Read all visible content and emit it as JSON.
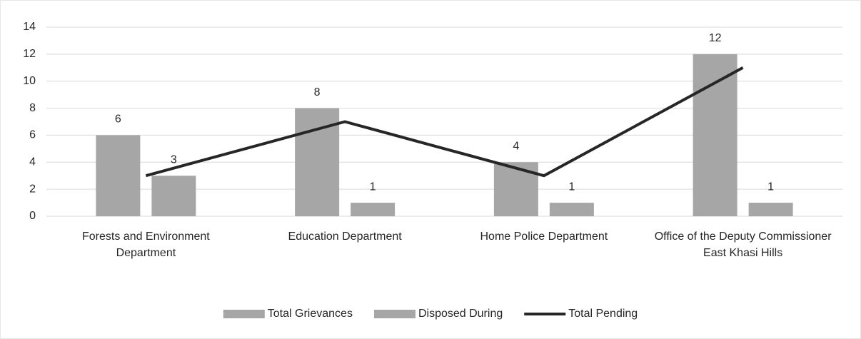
{
  "chart_data": {
    "type": "bar",
    "categories": [
      "Forests and Environment Department",
      "Education Department",
      "Home Police Department",
      "Office of the Deputy Commissioner East Khasi Hills"
    ],
    "series": [
      {
        "name": "Total Grievances",
        "color": "#a6a6a6",
        "values": [
          6,
          8,
          4,
          12
        ],
        "data_labels": true
      },
      {
        "name": "Disposed During",
        "color": "#a6a6a6",
        "values": [
          3,
          1,
          1,
          1
        ],
        "data_labels": true
      },
      {
        "name": "Total Pending",
        "color": "#262626",
        "type": "line",
        "values": [
          3,
          7,
          3,
          11
        ]
      }
    ],
    "ylim": [
      0,
      14
    ],
    "yticks": [
      0,
      2,
      4,
      6,
      8,
      10,
      12,
      14
    ],
    "grid": true,
    "legend": "bottom"
  }
}
